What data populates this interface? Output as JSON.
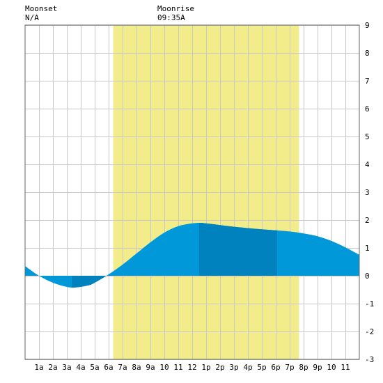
{
  "header": {
    "moonset_label": "Moonset",
    "moonset_time": "N/A",
    "moonrise_label": "Moonrise",
    "moonrise_time": "09:35A"
  },
  "chart_data": {
    "type": "area",
    "title": "",
    "xlabel": "",
    "ylabel": "",
    "xlim": [
      0,
      24
    ],
    "ylim": [
      -3,
      9
    ],
    "y_ticks": [
      -3,
      -2,
      -1,
      0,
      1,
      2,
      3,
      4,
      5,
      6,
      7,
      8,
      9
    ],
    "x_ticks": [
      {
        "hour": 1,
        "label": "1a"
      },
      {
        "hour": 2,
        "label": "2a"
      },
      {
        "hour": 3,
        "label": "3a"
      },
      {
        "hour": 4,
        "label": "4a"
      },
      {
        "hour": 5,
        "label": "5a"
      },
      {
        "hour": 6,
        "label": "6a"
      },
      {
        "hour": 7,
        "label": "7a"
      },
      {
        "hour": 8,
        "label": "8a"
      },
      {
        "hour": 9,
        "label": "9a"
      },
      {
        "hour": 10,
        "label": "10"
      },
      {
        "hour": 11,
        "label": "11"
      },
      {
        "hour": 12,
        "label": "12"
      },
      {
        "hour": 13,
        "label": "1p"
      },
      {
        "hour": 14,
        "label": "2p"
      },
      {
        "hour": 15,
        "label": "3p"
      },
      {
        "hour": 16,
        "label": "4p"
      },
      {
        "hour": 17,
        "label": "5p"
      },
      {
        "hour": 18,
        "label": "6p"
      },
      {
        "hour": 19,
        "label": "7p"
      },
      {
        "hour": 20,
        "label": "8p"
      },
      {
        "hour": 21,
        "label": "9p"
      },
      {
        "hour": 22,
        "label": "10"
      },
      {
        "hour": 23,
        "label": "11"
      }
    ],
    "daylight": {
      "start": 6.33,
      "end": 19.67
    },
    "dark_bands": [
      [
        3.35,
        5.85
      ],
      [
        12.5,
        18.1
      ]
    ],
    "series": [
      {
        "x": [
          0,
          1,
          2,
          3,
          3.6,
          4.5,
          5,
          6,
          7,
          8,
          9,
          10,
          11,
          12,
          12.6,
          13,
          14,
          15,
          16,
          17,
          18,
          19,
          20,
          21,
          22,
          23,
          24
        ],
        "y": [
          0.35,
          0.0,
          -0.25,
          -0.4,
          -0.42,
          -0.35,
          -0.25,
          0.05,
          0.4,
          0.8,
          1.2,
          1.55,
          1.78,
          1.88,
          1.9,
          1.88,
          1.82,
          1.76,
          1.71,
          1.67,
          1.63,
          1.59,
          1.52,
          1.42,
          1.25,
          1.02,
          0.75
        ]
      }
    ],
    "colors": {
      "daylight": "#f2ec8a",
      "tide": "#0098d9",
      "tide_dark": "#0082bf"
    },
    "grid": true
  }
}
